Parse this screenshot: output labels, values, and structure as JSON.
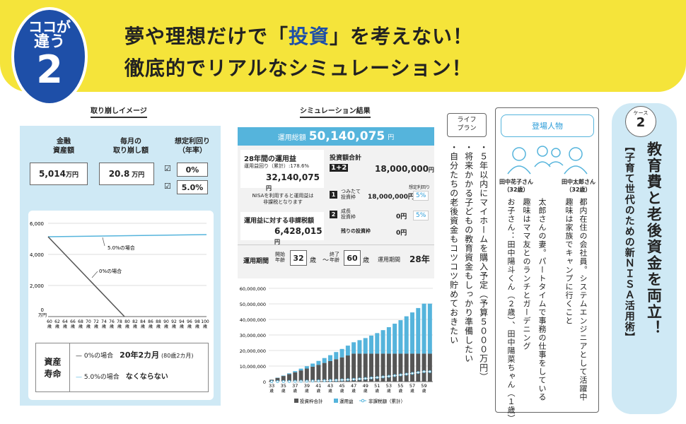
{
  "badge": {
    "line1": "ココが",
    "line2": "違う",
    "num": "2"
  },
  "headline": {
    "pre": "夢や理想だけで「",
    "em": "投資",
    "post": "」を考えない！",
    "line2": "徹底的でリアルなシミュレーション！"
  },
  "left": {
    "title": "取り崩しイメージ",
    "col1": "金融\n資産額",
    "col2": "毎月の\n取り崩し額",
    "col3": "想定利回り\n（年率）",
    "v1": "5,014",
    "v1u": "万円",
    "v2": "20.8",
    "v2u": "万円",
    "r1": "0%",
    "r2": "5.0%",
    "chart": {
      "yticks": [
        "6,000",
        "4,000",
        "2,000",
        "0"
      ],
      "yunit": "万円",
      "xticks": [
        "60",
        "62",
        "64",
        "66",
        "68",
        "70",
        "72",
        "74",
        "76",
        "78",
        "80",
        "82",
        "84",
        "86",
        "88",
        "90",
        "92",
        "94",
        "96",
        "98",
        "100"
      ],
      "xunit": "歳",
      "ann5": "5.0%の場合",
      "ann0": "0%の場合"
    },
    "legend": {
      "head": "資産\n寿命",
      "r1a": "0%の場合",
      "r1b": "20年2カ月",
      "r1c": "(80歳2カ月)",
      "r2a": "5.0%の場合",
      "r2b": "なくならない"
    }
  },
  "mid": {
    "title": "シミュレーション結果",
    "total_label": "運用総額",
    "total": "50,140,075",
    "total_unit": "円",
    "gain_label": "28年間の運用益",
    "gain_sub": "運用益回り（累計）:178.6%",
    "gain": "32,140,075",
    "gain_unit": "円",
    "nisa_note": "NISAを利用すると運用益は\n非課税となります",
    "tax_label": "運用益に対する非課税額",
    "tax": "6,428,015",
    "tax_unit": "円",
    "inv_label": "投資額合計",
    "inv_boxes": "1+2",
    "inv": "18,000,000",
    "inv_unit": "円",
    "rate_label": "想定利回り",
    "i1": "つみたて\n投資枠",
    "i1v": "18,000,000円",
    "i1p": "5%",
    "i2": "成長\n投資枠",
    "i2v": "0円",
    "i2p": "5%",
    "i3": "残りの投資枠",
    "i3v": "0円",
    "period_label": "運用期間",
    "start_label": "開始\n年齢",
    "start": "32",
    "age_unit": "歳",
    "end_label": "終了\n年齢",
    "end": "60",
    "period_label2": "運用期間",
    "period": "28年"
  },
  "chart_data": {
    "type": "bar",
    "title": "",
    "xlabel": "",
    "ylabel": "",
    "x": [
      "33",
      "35",
      "37",
      "39",
      "41",
      "43",
      "45",
      "47",
      "49",
      "51",
      "53",
      "55",
      "57",
      "59"
    ],
    "xunit": "歳",
    "ylim": [
      0,
      60000000
    ],
    "yticks": [
      "60,000,000",
      "50,000,000",
      "40,000,000",
      "30,000,000",
      "20,000,000",
      "10,000,000",
      "0"
    ],
    "series": [
      {
        "name": "投資枠合計",
        "color": "#555555",
        "values": [
          1200000,
          3600000,
          6000000,
          8400000,
          10800000,
          13200000,
          15600000,
          18000000,
          18000000,
          18000000,
          18000000,
          18000000,
          18000000,
          18000000
        ]
      },
      {
        "name": "運用益",
        "color": "#55b4dc",
        "values": [
          30000,
          280000,
          760000,
          1500000,
          2500000,
          3800000,
          5400000,
          7300000,
          10000000,
          13200000,
          17000000,
          21500000,
          26500000,
          32140075
        ]
      },
      {
        "name": "非課税額（累計）",
        "color": "#55b4dc",
        "values": [
          6000,
          56000,
          152000,
          300000,
          500000,
          760000,
          1080000,
          1460000,
          2000000,
          2640000,
          3400000,
          4300000,
          5300000,
          6428015
        ]
      }
    ]
  },
  "life": {
    "label": "ライフ\nプラン",
    "lines": [
      "・５年以内にマイホームを購入予定（予算５０００万円）",
      "・将来かかる子どもの教育資金もしっかり準備したい",
      "・自分たちの老後資金もコツコツ貯めておきたい"
    ]
  },
  "people": {
    "title": "登場人物",
    "p1": "田中太郎さん\n（32歳）",
    "p2": "田中花子さん\n（32歳）",
    "taro": [
      "都内在住の会社員。システムエンジニアとして活躍中",
      "趣味は家族でキャンプに行くこと"
    ],
    "hanako": [
      "太郎さんの妻。パートタイムで事務の仕事をしている",
      "趣味はママ友とのランチとガーデニング",
      "お子さん：田中陽斗くん（２歳）、田中陽菜ちゃん（１歳）"
    ]
  },
  "case": {
    "label": "ケース",
    "num": "2",
    "title": "教育費と老後資金を両立！",
    "sub": "【子育て世代のための新ＮＩＳＡ活用術】"
  }
}
